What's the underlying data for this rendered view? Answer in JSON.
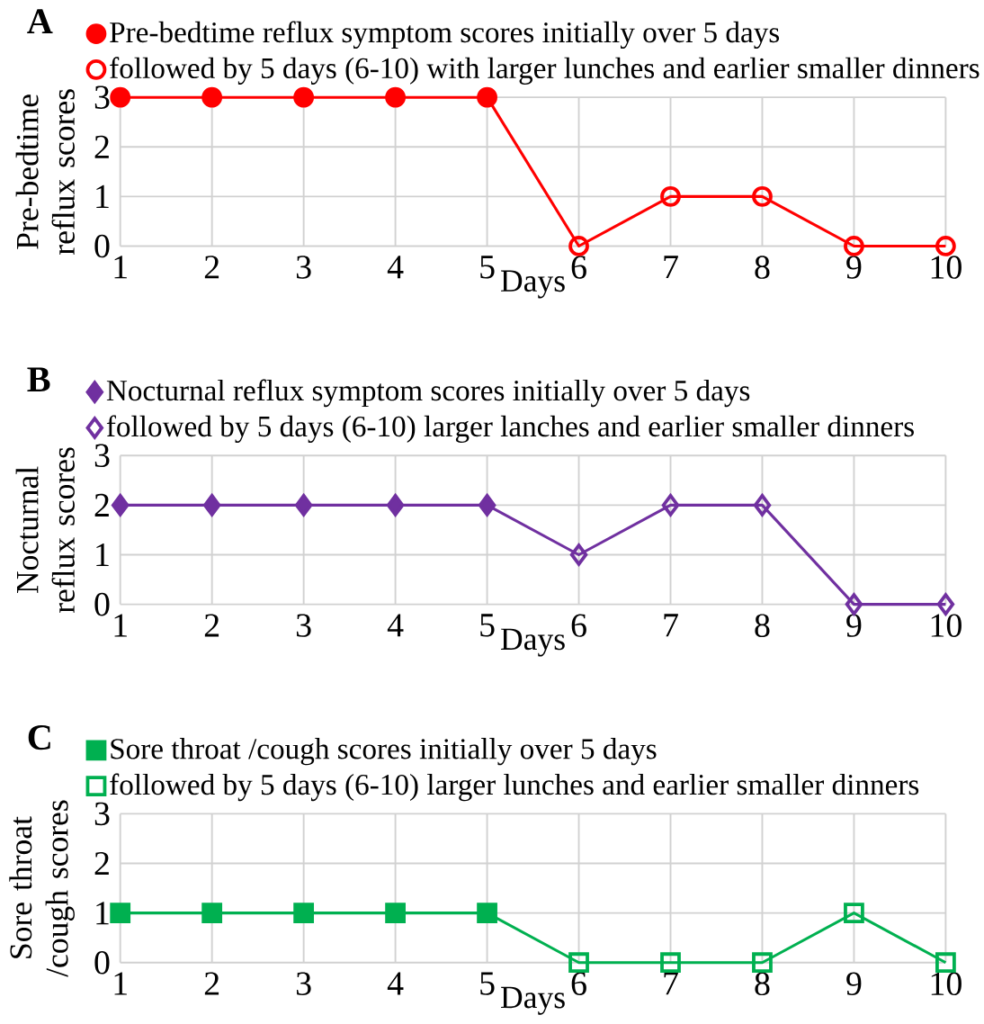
{
  "chart_data": [
    {
      "type": "line",
      "title": "A",
      "xlabel": "Days",
      "ylabel": "Pre-bedtime reflux scores",
      "xlim": [
        1,
        10
      ],
      "xticks": [
        1,
        2,
        3,
        4,
        5,
        6,
        7,
        8,
        9,
        10
      ],
      "ylim": [
        0,
        3
      ],
      "yticks": [
        0,
        1,
        2,
        3
      ],
      "grid": true,
      "legend": "top left",
      "marker": "circle",
      "series": [
        {
          "name": "Pre-bedtime reflux symptom scores initially over 5 days",
          "color": "#ff0000",
          "x": [
            1,
            2,
            3,
            4,
            5
          ],
          "values": [
            3,
            3,
            3,
            3,
            3
          ]
        },
        {
          "name": "followed by 5 days (6-10) with larger lunches and earlier smaller dinners",
          "color": "#ff0000",
          "x": [
            5,
            6,
            7,
            8,
            9,
            10
          ],
          "values": [
            3,
            0,
            1,
            1,
            0,
            0
          ]
        }
      ]
    },
    {
      "type": "line",
      "title": "B",
      "xlabel": "Days",
      "ylabel": "Nocturnal reflux scores",
      "xlim": [
        1,
        10
      ],
      "xticks": [
        1,
        2,
        3,
        4,
        5,
        6,
        7,
        8,
        9,
        10
      ],
      "ylim": [
        0,
        3
      ],
      "yticks": [
        0,
        1,
        2,
        3
      ],
      "grid": true,
      "legend": "top left",
      "marker": "diamond",
      "series": [
        {
          "name": "Nocturnal reflux symptom scores initially over 5 days",
          "color": "#7030a0",
          "x": [
            1,
            2,
            3,
            4,
            5
          ],
          "values": [
            2,
            2,
            2,
            2,
            2
          ]
        },
        {
          "name": "followed by 5 days (6-10) larger lanches and earlier smaller dinners",
          "color": "#7030a0",
          "x": [
            5,
            6,
            7,
            8,
            9,
            10
          ],
          "values": [
            2,
            1,
            2,
            2,
            0,
            0
          ]
        }
      ]
    },
    {
      "type": "line",
      "title": "C",
      "xlabel": "Days",
      "ylabel": "Sore throat /cough scores",
      "xlim": [
        1,
        10
      ],
      "xticks": [
        1,
        2,
        3,
        4,
        5,
        6,
        7,
        8,
        9,
        10
      ],
      "ylim": [
        0,
        3
      ],
      "yticks": [
        0,
        1,
        2,
        3
      ],
      "grid": true,
      "legend": "top left",
      "marker": "square",
      "series": [
        {
          "name": "Sore throat /cough scores initially over 5 days",
          "color": "#00b050",
          "x": [
            1,
            2,
            3,
            4,
            5
          ],
          "values": [
            1,
            1,
            1,
            1,
            1
          ]
        },
        {
          "name": "followed by 5 days (6-10) larger lunches and earlier smaller dinners",
          "color": "#00b050",
          "x": [
            5,
            6,
            7,
            8,
            9,
            10
          ],
          "values": [
            1,
            0,
            0,
            0,
            1,
            0
          ]
        }
      ]
    }
  ]
}
